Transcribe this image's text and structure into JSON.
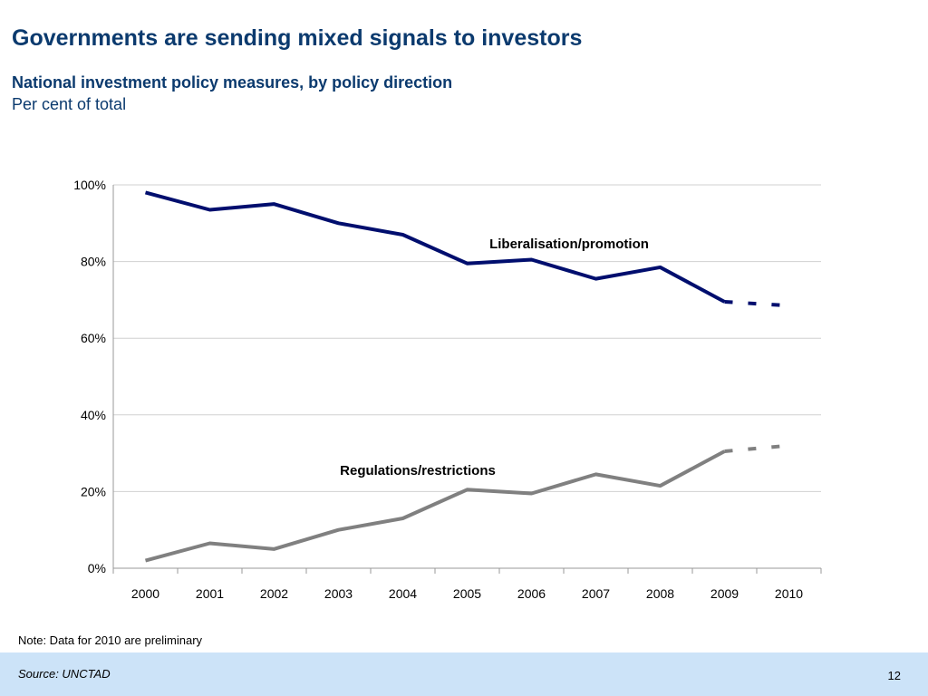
{
  "slide": {
    "title": "Governments are sending mixed signals to investors",
    "note": "Note: Data for 2010 are preliminary",
    "source": "Source: UNCTAD",
    "page_number": "12"
  },
  "chart_data": {
    "type": "line",
    "title": "National investment policy measures, by policy direction",
    "subtitle": "Per cent of total",
    "categories": [
      "2000",
      "2001",
      "2002",
      "2003",
      "2004",
      "2005",
      "2006",
      "2007",
      "2008",
      "2009",
      "2010"
    ],
    "ylim": [
      0,
      100
    ],
    "yticks": [
      "0%",
      "20%",
      "40%",
      "60%",
      "80%",
      "100%"
    ],
    "grid": true,
    "preliminary_from": "2010",
    "series": [
      {
        "name": "Liberalisation/promotion",
        "color": "#000e6e",
        "values": [
          98,
          93.5,
          95,
          90,
          87,
          79.5,
          80.5,
          75.5,
          78.5,
          69.5,
          68.5
        ]
      },
      {
        "name": "Regulations/restrictions",
        "color": "#808080",
        "values": [
          2,
          6.5,
          5,
          10,
          13,
          20.5,
          19.5,
          24.5,
          21.5,
          30.5,
          32
        ]
      }
    ]
  }
}
